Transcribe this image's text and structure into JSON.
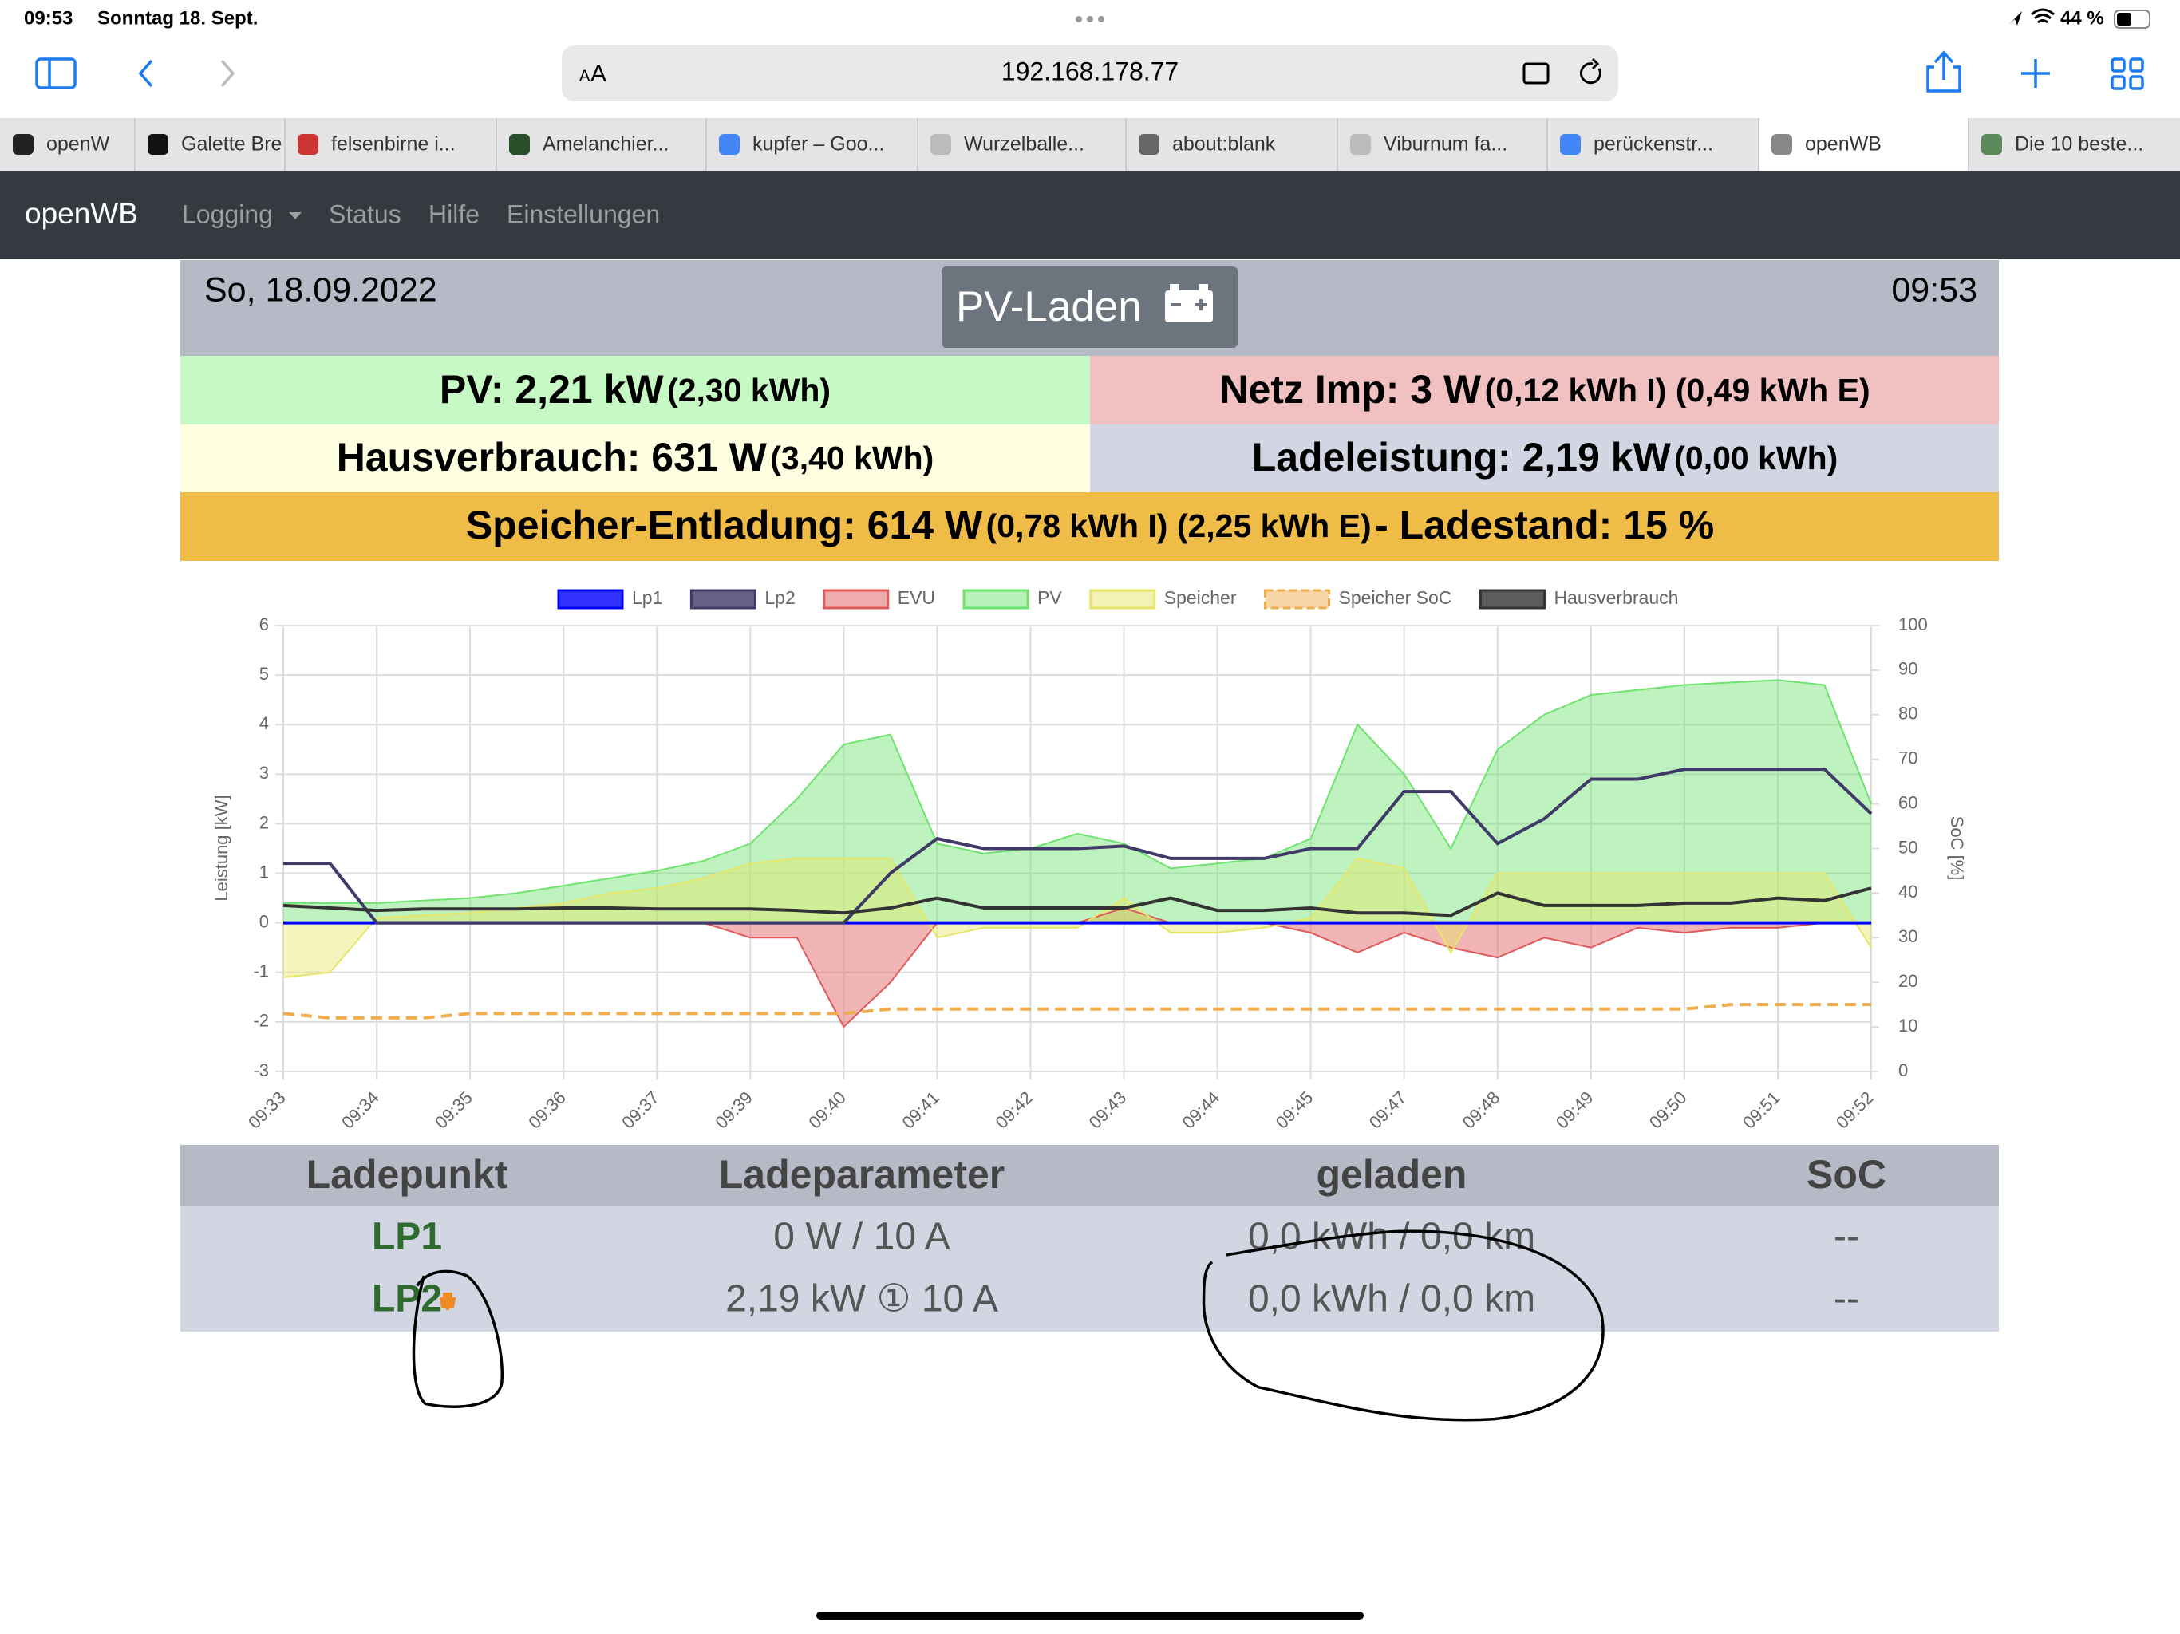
{
  "status_bar": {
    "time": "09:53",
    "date": "Sonntag 18. Sept.",
    "battery": "44 %"
  },
  "browser": {
    "text_size": [
      "A",
      "A"
    ],
    "url": "192.168.178.77",
    "tabs": [
      "openW",
      "Galette Bre",
      "felsenbirne i...",
      "Amelanchier...",
      "kupfer – Goo...",
      "Wurzelballe...",
      "about:blank",
      "Viburnum fa...",
      "perückenstr...",
      "openWB",
      "Die 10 beste..."
    ]
  },
  "navbar": {
    "brand": "openWB",
    "links": [
      "Logging",
      "Status",
      "Hilfe",
      "Einstellungen"
    ]
  },
  "header": {
    "date": "So, 18.09.2022",
    "mode": "PV-Laden",
    "time": "09:53"
  },
  "summary": {
    "pv": {
      "main": "PV: 2,21 kW",
      "detail": "(2,30 kWh)"
    },
    "grid": {
      "main": "Netz Imp: 3 W",
      "detail": "(0,12 kWh I) (0,49 kWh E)"
    },
    "house": {
      "main": "Hausverbrauch: 631 W",
      "detail": "(3,40 kWh)"
    },
    "charge": {
      "main": "Ladeleistung: 2,19 kW",
      "detail": "(0,00 kWh)"
    },
    "storage": {
      "main": "Speicher-Entladung: 614 W",
      "detail": "(0,78 kWh I) (2,25 kWh E)",
      "tail": "- Ladestand: 15 %"
    }
  },
  "chart_data": {
    "type": "line",
    "ylabel": "Leistung [kW]",
    "y2label": "SoC [%]",
    "categories": [
      "09:33",
      null,
      "09:34",
      null,
      "09:35",
      null,
      "09:36",
      null,
      "09:37",
      null,
      "09:39",
      null,
      "09:40",
      null,
      "09:41",
      null,
      "09:42",
      null,
      "09:43",
      null,
      "09:44",
      null,
      "09:45",
      null,
      "09:47",
      null,
      "09:48",
      null,
      "09:49",
      null,
      "09:50",
      null,
      "09:51",
      null,
      "09:52"
    ],
    "ylim": [
      -3,
      6
    ],
    "yticks": [
      -3,
      -2,
      -1,
      0,
      1,
      2,
      3,
      4,
      5,
      6
    ],
    "y2lim": [
      0,
      100
    ],
    "y2ticks": [
      0,
      10,
      20,
      30,
      40,
      50,
      60,
      70,
      80,
      90,
      100
    ],
    "grid": true,
    "series": [
      {
        "name": "Lp1",
        "color": "#0000ff",
        "values": [
          0,
          0,
          0,
          0,
          0,
          0,
          0,
          0,
          0,
          0,
          0,
          0,
          0,
          0,
          0,
          0,
          0,
          0,
          0,
          0,
          0,
          0,
          0,
          0,
          0,
          0,
          0,
          0,
          0,
          0,
          0,
          0,
          0,
          0,
          0
        ]
      },
      {
        "name": "Lp2",
        "color": "#3f3a68",
        "values": [
          1.2,
          1.2,
          0,
          0,
          0,
          0,
          0,
          0,
          0,
          0,
          0,
          0,
          0,
          1.0,
          1.7,
          1.5,
          1.5,
          1.5,
          1.55,
          1.3,
          1.3,
          1.3,
          1.5,
          1.5,
          2.65,
          2.65,
          1.6,
          2.1,
          2.9,
          2.9,
          3.1,
          3.1,
          3.1,
          3.1,
          2.2
        ]
      },
      {
        "name": "EVU",
        "color": "#e05a5a",
        "area": true,
        "values": [
          0,
          0,
          0,
          0,
          0,
          0,
          0,
          0,
          0,
          0,
          -0.3,
          -0.3,
          -2.1,
          -1.2,
          0,
          0,
          0,
          0,
          0.3,
          0,
          0,
          0,
          -0.2,
          -0.6,
          -0.2,
          -0.5,
          -0.7,
          -0.3,
          -0.5,
          -0.1,
          -0.2,
          -0.1,
          -0.1,
          0,
          0
        ]
      },
      {
        "name": "PV",
        "color": "#6fe36f",
        "area": true,
        "values": [
          0.4,
          0.4,
          0.4,
          0.45,
          0.5,
          0.6,
          0.75,
          0.9,
          1.05,
          1.25,
          1.6,
          2.5,
          3.6,
          3.8,
          1.6,
          1.4,
          1.5,
          1.8,
          1.6,
          1.1,
          1.2,
          1.3,
          1.7,
          4.0,
          3.0,
          1.5,
          3.5,
          4.2,
          4.6,
          4.7,
          4.8,
          4.85,
          4.9,
          4.8,
          2.4
        ]
      },
      {
        "name": "Speicher",
        "color": "#e6e66a",
        "area": true,
        "values": [
          -1.1,
          -1.0,
          0.1,
          0.15,
          0.2,
          0.3,
          0.4,
          0.6,
          0.7,
          0.9,
          1.2,
          1.3,
          1.3,
          1.3,
          -0.3,
          -0.1,
          -0.1,
          -0.1,
          0.5,
          -0.2,
          -0.2,
          -0.1,
          0.1,
          1.3,
          1.1,
          -0.6,
          1.0,
          1.0,
          1.0,
          1.0,
          1.0,
          1.0,
          1.0,
          1.0,
          -0.5
        ]
      },
      {
        "name": "Speicher SoC",
        "color": "#f0ad4e",
        "dashed": true,
        "axis": "y2",
        "values": [
          13,
          12,
          12,
          12,
          13,
          13,
          13,
          13,
          13,
          13,
          13,
          13,
          13,
          14,
          14,
          14,
          14,
          14,
          14,
          14,
          14,
          14,
          14,
          14,
          14,
          14,
          14,
          14,
          14,
          14,
          14,
          15,
          15,
          15,
          15
        ]
      },
      {
        "name": "Hausverbrauch",
        "color": "#333333",
        "values": [
          0.35,
          0.3,
          0.25,
          0.28,
          0.28,
          0.28,
          0.3,
          0.3,
          0.28,
          0.28,
          0.28,
          0.25,
          0.2,
          0.3,
          0.5,
          0.3,
          0.3,
          0.3,
          0.3,
          0.5,
          0.25,
          0.25,
          0.3,
          0.2,
          0.2,
          0.15,
          0.6,
          0.35,
          0.35,
          0.35,
          0.4,
          0.4,
          0.5,
          0.45,
          0.7
        ]
      }
    ]
  },
  "table": {
    "headers": [
      "Ladepunkt",
      "Ladeparameter",
      "geladen",
      "SoC"
    ],
    "rows": [
      [
        "LP1",
        "0 W / 10 A",
        "0,0 kWh / 0,0 km",
        "--"
      ],
      [
        "LP2",
        "2,19 kW ① 10 A",
        "0,0 kWh / 0,0 km",
        "--"
      ]
    ]
  }
}
